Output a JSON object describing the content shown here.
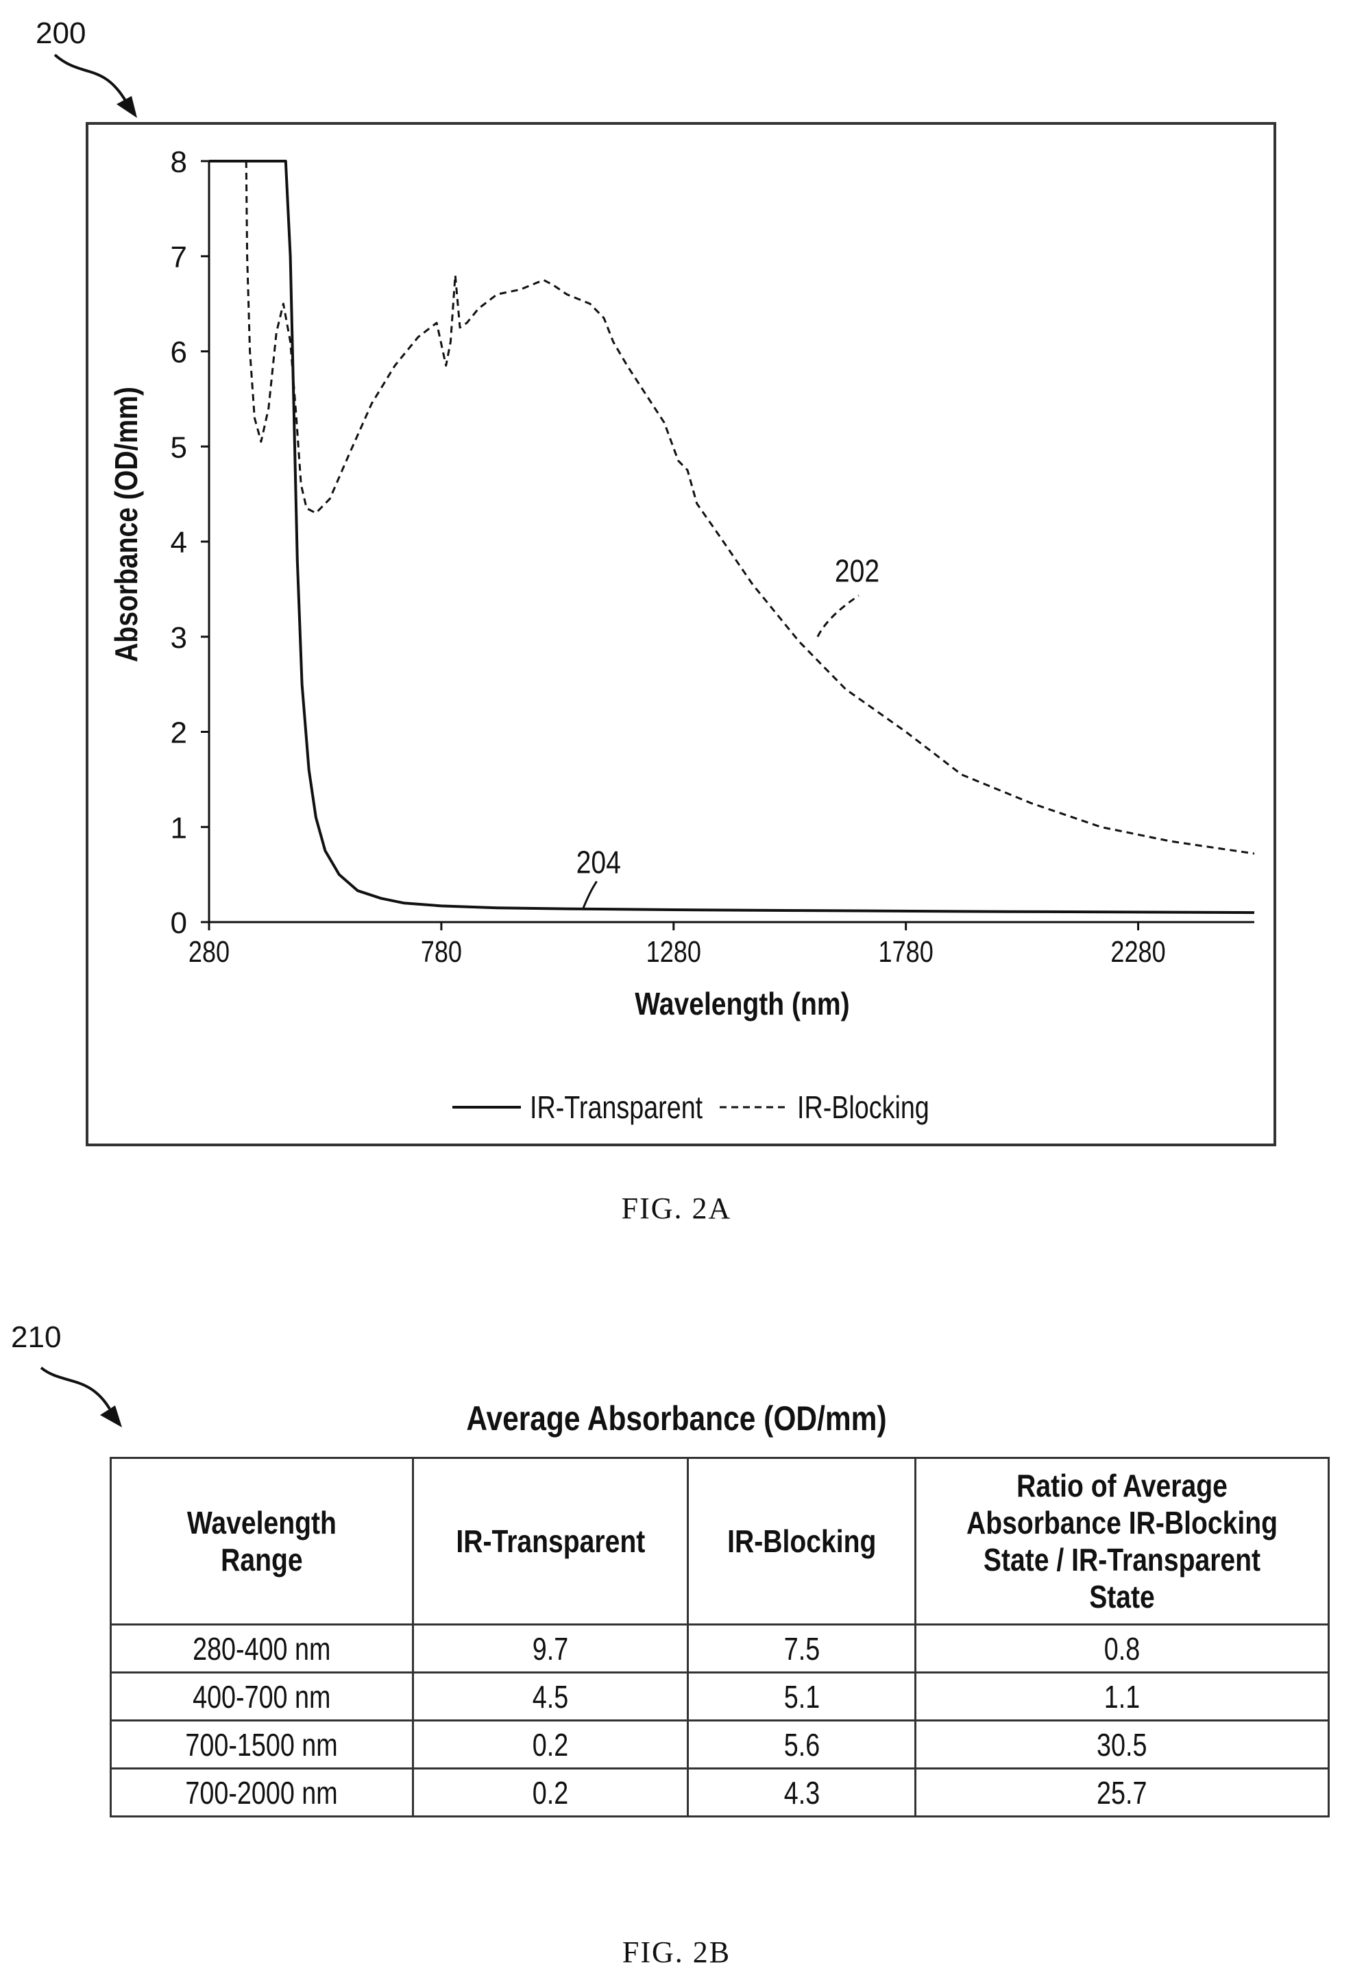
{
  "fig_a": {
    "ref_number": "200",
    "caption": "FIG. 2A",
    "curve_labels": {
      "blocking": "202",
      "transparent": "204"
    }
  },
  "fig_b": {
    "ref_number": "210",
    "caption": "FIG. 2B",
    "table_title": "Average Absorbance (OD/mm)",
    "columns": [
      "Wavelength Range",
      "IR-Transparent",
      "IR-Blocking",
      "Ratio of Average Absorbance IR-Blocking State / IR-Transparent State"
    ],
    "rows": [
      [
        "280-400 nm",
        "9.7",
        "7.5",
        "0.8"
      ],
      [
        "400-700 nm",
        "4.5",
        "5.1",
        "1.1"
      ],
      [
        "700-1500 nm",
        "0.2",
        "5.6",
        "30.5"
      ],
      [
        "700-2000 nm",
        "0.2",
        "4.3",
        "25.7"
      ]
    ]
  },
  "chart_data": {
    "type": "line",
    "xlabel": "Wavelength (nm)",
    "ylabel": "Absorbance (OD/mm)",
    "xlim": [
      280,
      2530
    ],
    "ylim": [
      0,
      8
    ],
    "x_ticks": [
      280,
      780,
      1280,
      1780,
      2280
    ],
    "y_ticks": [
      0,
      1,
      2,
      3,
      4,
      5,
      6,
      7,
      8
    ],
    "legend_position": "bottom-center",
    "grid": false,
    "series": [
      {
        "name": "IR-Transparent",
        "style": "solid",
        "color": "#111111",
        "x": [
          280,
          360,
          400,
          435,
          445,
          455,
          462,
          470,
          480,
          495,
          510,
          530,
          560,
          600,
          650,
          700,
          780,
          900,
          1050,
          1280,
          1600,
          2000,
          2530
        ],
        "y": [
          8.0,
          8.0,
          8.0,
          8.0,
          8.0,
          7.0,
          5.5,
          3.8,
          2.5,
          1.6,
          1.1,
          0.75,
          0.5,
          0.33,
          0.25,
          0.2,
          0.17,
          0.15,
          0.14,
          0.13,
          0.12,
          0.11,
          0.1
        ]
      },
      {
        "name": "IR-Blocking",
        "style": "dashed",
        "color": "#111111",
        "x": [
          360,
          362,
          368,
          378,
          392,
          408,
          425,
          440,
          455,
          468,
          478,
          490,
          510,
          540,
          580,
          630,
          680,
          730,
          770,
          790,
          800,
          810,
          820,
          835,
          860,
          900,
          950,
          1000,
          1020,
          1050,
          1100,
          1130,
          1150,
          1180,
          1220,
          1260,
          1290,
          1310,
          1330,
          1380,
          1450,
          1550,
          1650,
          1780,
          1900,
          2050,
          2200,
          2350,
          2530
        ],
        "y": [
          8.0,
          7.0,
          6.0,
          5.3,
          5.05,
          5.4,
          6.2,
          6.5,
          6.1,
          5.3,
          4.6,
          4.35,
          4.3,
          4.45,
          4.9,
          5.45,
          5.85,
          6.15,
          6.3,
          5.85,
          6.1,
          6.8,
          6.25,
          6.3,
          6.45,
          6.6,
          6.65,
          6.75,
          6.7,
          6.6,
          6.5,
          6.35,
          6.1,
          5.85,
          5.55,
          5.25,
          4.85,
          4.75,
          4.4,
          4.05,
          3.55,
          2.95,
          2.45,
          2.0,
          1.55,
          1.25,
          1.0,
          0.85,
          0.72
        ]
      }
    ]
  }
}
